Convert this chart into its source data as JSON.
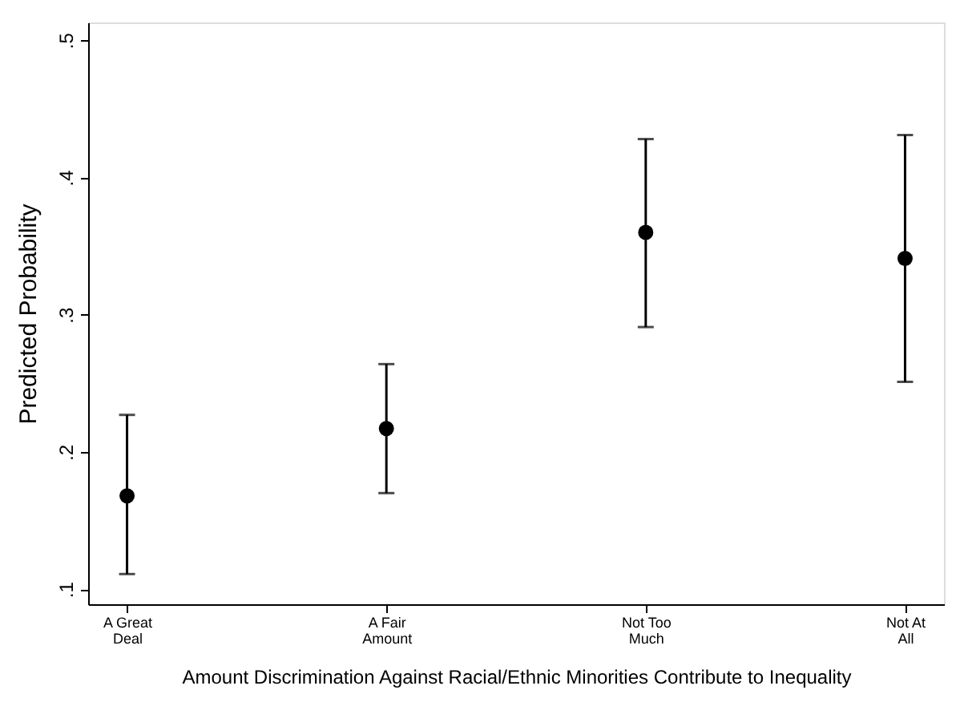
{
  "chart_data": {
    "type": "scatter",
    "xlabel": "Amount Discrimination Against Racial/Ethnic Minorities Contribute to Inequality",
    "ylabel": "Predicted Probability",
    "categories": [
      "A Great Deal",
      "A Fair Amount",
      "Not Too Much",
      "Not At All"
    ],
    "series": [
      {
        "color": "#000000",
        "values": [
          0.168,
          0.217,
          0.36,
          0.341
        ],
        "errors": [
          [
            0.111,
            0.227
          ],
          [
            0.17,
            0.264
          ],
          [
            0.291,
            0.428
          ],
          [
            0.251,
            0.431
          ]
        ]
      }
    ],
    "ylim": [
      0.089,
      0.513
    ],
    "yticks": [
      {
        "value": 0.1,
        "label": ".1"
      },
      {
        "value": 0.2,
        "label": ".2"
      },
      {
        "value": 0.3,
        "label": ".3"
      },
      {
        "value": 0.4,
        "label": ".4"
      },
      {
        "value": 0.5,
        "label": ".5"
      }
    ],
    "marker": "circle",
    "grid": false
  }
}
